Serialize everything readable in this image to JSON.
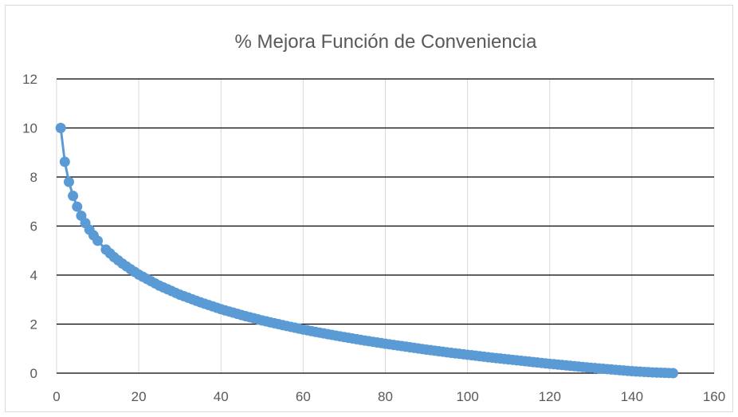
{
  "chart_data": {
    "type": "line",
    "title": "% Mejora Función de Conveniencia",
    "xlabel": "",
    "ylabel": "",
    "xlim": [
      0,
      160
    ],
    "ylim": [
      0,
      12
    ],
    "x_ticks": [
      0,
      20,
      40,
      60,
      80,
      100,
      120,
      140,
      160
    ],
    "y_ticks": [
      0,
      2,
      4,
      6,
      8,
      10,
      12
    ],
    "grid": "on",
    "legend": "none",
    "colors": {
      "series": "#5b9bd5",
      "hgrid": "#000000",
      "vgrid": "#d9d9d9",
      "text": "#595959"
    },
    "series": [
      {
        "markers": true,
        "points": [
          [
            1,
            10.0
          ],
          [
            2,
            8.62
          ],
          [
            3,
            7.8
          ],
          [
            4,
            7.23
          ],
          [
            5,
            6.79
          ],
          [
            6,
            6.42
          ],
          [
            7,
            6.12
          ],
          [
            8,
            5.85
          ],
          [
            9,
            5.62
          ],
          [
            10,
            5.4
          ],
          [
            12,
            5.04
          ],
          [
            14,
            4.73
          ],
          [
            16,
            4.47
          ],
          [
            18,
            4.24
          ],
          [
            20,
            4.02
          ],
          [
            25,
            3.57
          ],
          [
            30,
            3.2
          ],
          [
            35,
            2.89
          ],
          [
            40,
            2.61
          ],
          [
            45,
            2.37
          ],
          [
            50,
            2.15
          ],
          [
            55,
            1.96
          ],
          [
            60,
            1.78
          ],
          [
            65,
            1.62
          ],
          [
            70,
            1.47
          ],
          [
            75,
            1.33
          ],
          [
            80,
            1.2
          ],
          [
            85,
            1.08
          ],
          [
            90,
            0.96
          ],
          [
            95,
            0.85
          ],
          [
            100,
            0.75
          ],
          [
            105,
            0.65
          ],
          [
            110,
            0.56
          ],
          [
            115,
            0.47
          ],
          [
            120,
            0.38
          ],
          [
            125,
            0.3
          ],
          [
            130,
            0.22
          ],
          [
            135,
            0.15
          ],
          [
            140,
            0.08
          ],
          [
            145,
            0.03
          ],
          [
            150,
            0.0
          ]
        ]
      }
    ]
  }
}
